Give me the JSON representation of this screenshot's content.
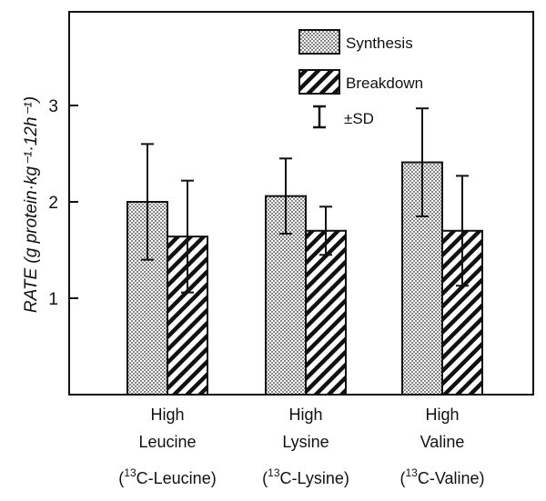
{
  "chart_data": {
    "type": "bar",
    "title": "",
    "xlabel": "",
    "ylabel": "RATE (g protein·kg⁻¹·12h⁻¹)",
    "ylim": [
      0,
      4
    ],
    "yticks": [
      1,
      2,
      3
    ],
    "grid": false,
    "legend_position": "top-right",
    "categories": [
      {
        "line1": "High",
        "line2": "Leucine",
        "tracer_prefix": "(",
        "tracer_sup": "13",
        "tracer_rest": "C-Leucine)"
      },
      {
        "line1": "High",
        "line2": "Lysine",
        "tracer_prefix": "(",
        "tracer_sup": "13",
        "tracer_rest": "C-Lysine)"
      },
      {
        "line1": "High",
        "line2": "Valine",
        "tracer_prefix": "(",
        "tracer_sup": "13",
        "tracer_rest": "C-Valine)"
      }
    ],
    "series": [
      {
        "name": "Synthesis",
        "pattern": "dotted",
        "values": [
          2.0,
          2.06,
          2.41
        ],
        "sd": [
          0.6,
          0.39,
          0.56
        ]
      },
      {
        "name": "Breakdown",
        "pattern": "hatched",
        "values": [
          1.64,
          1.7,
          1.7
        ],
        "sd": [
          0.58,
          0.25,
          0.57
        ]
      }
    ],
    "legend": {
      "sd_label": "±SD"
    }
  }
}
